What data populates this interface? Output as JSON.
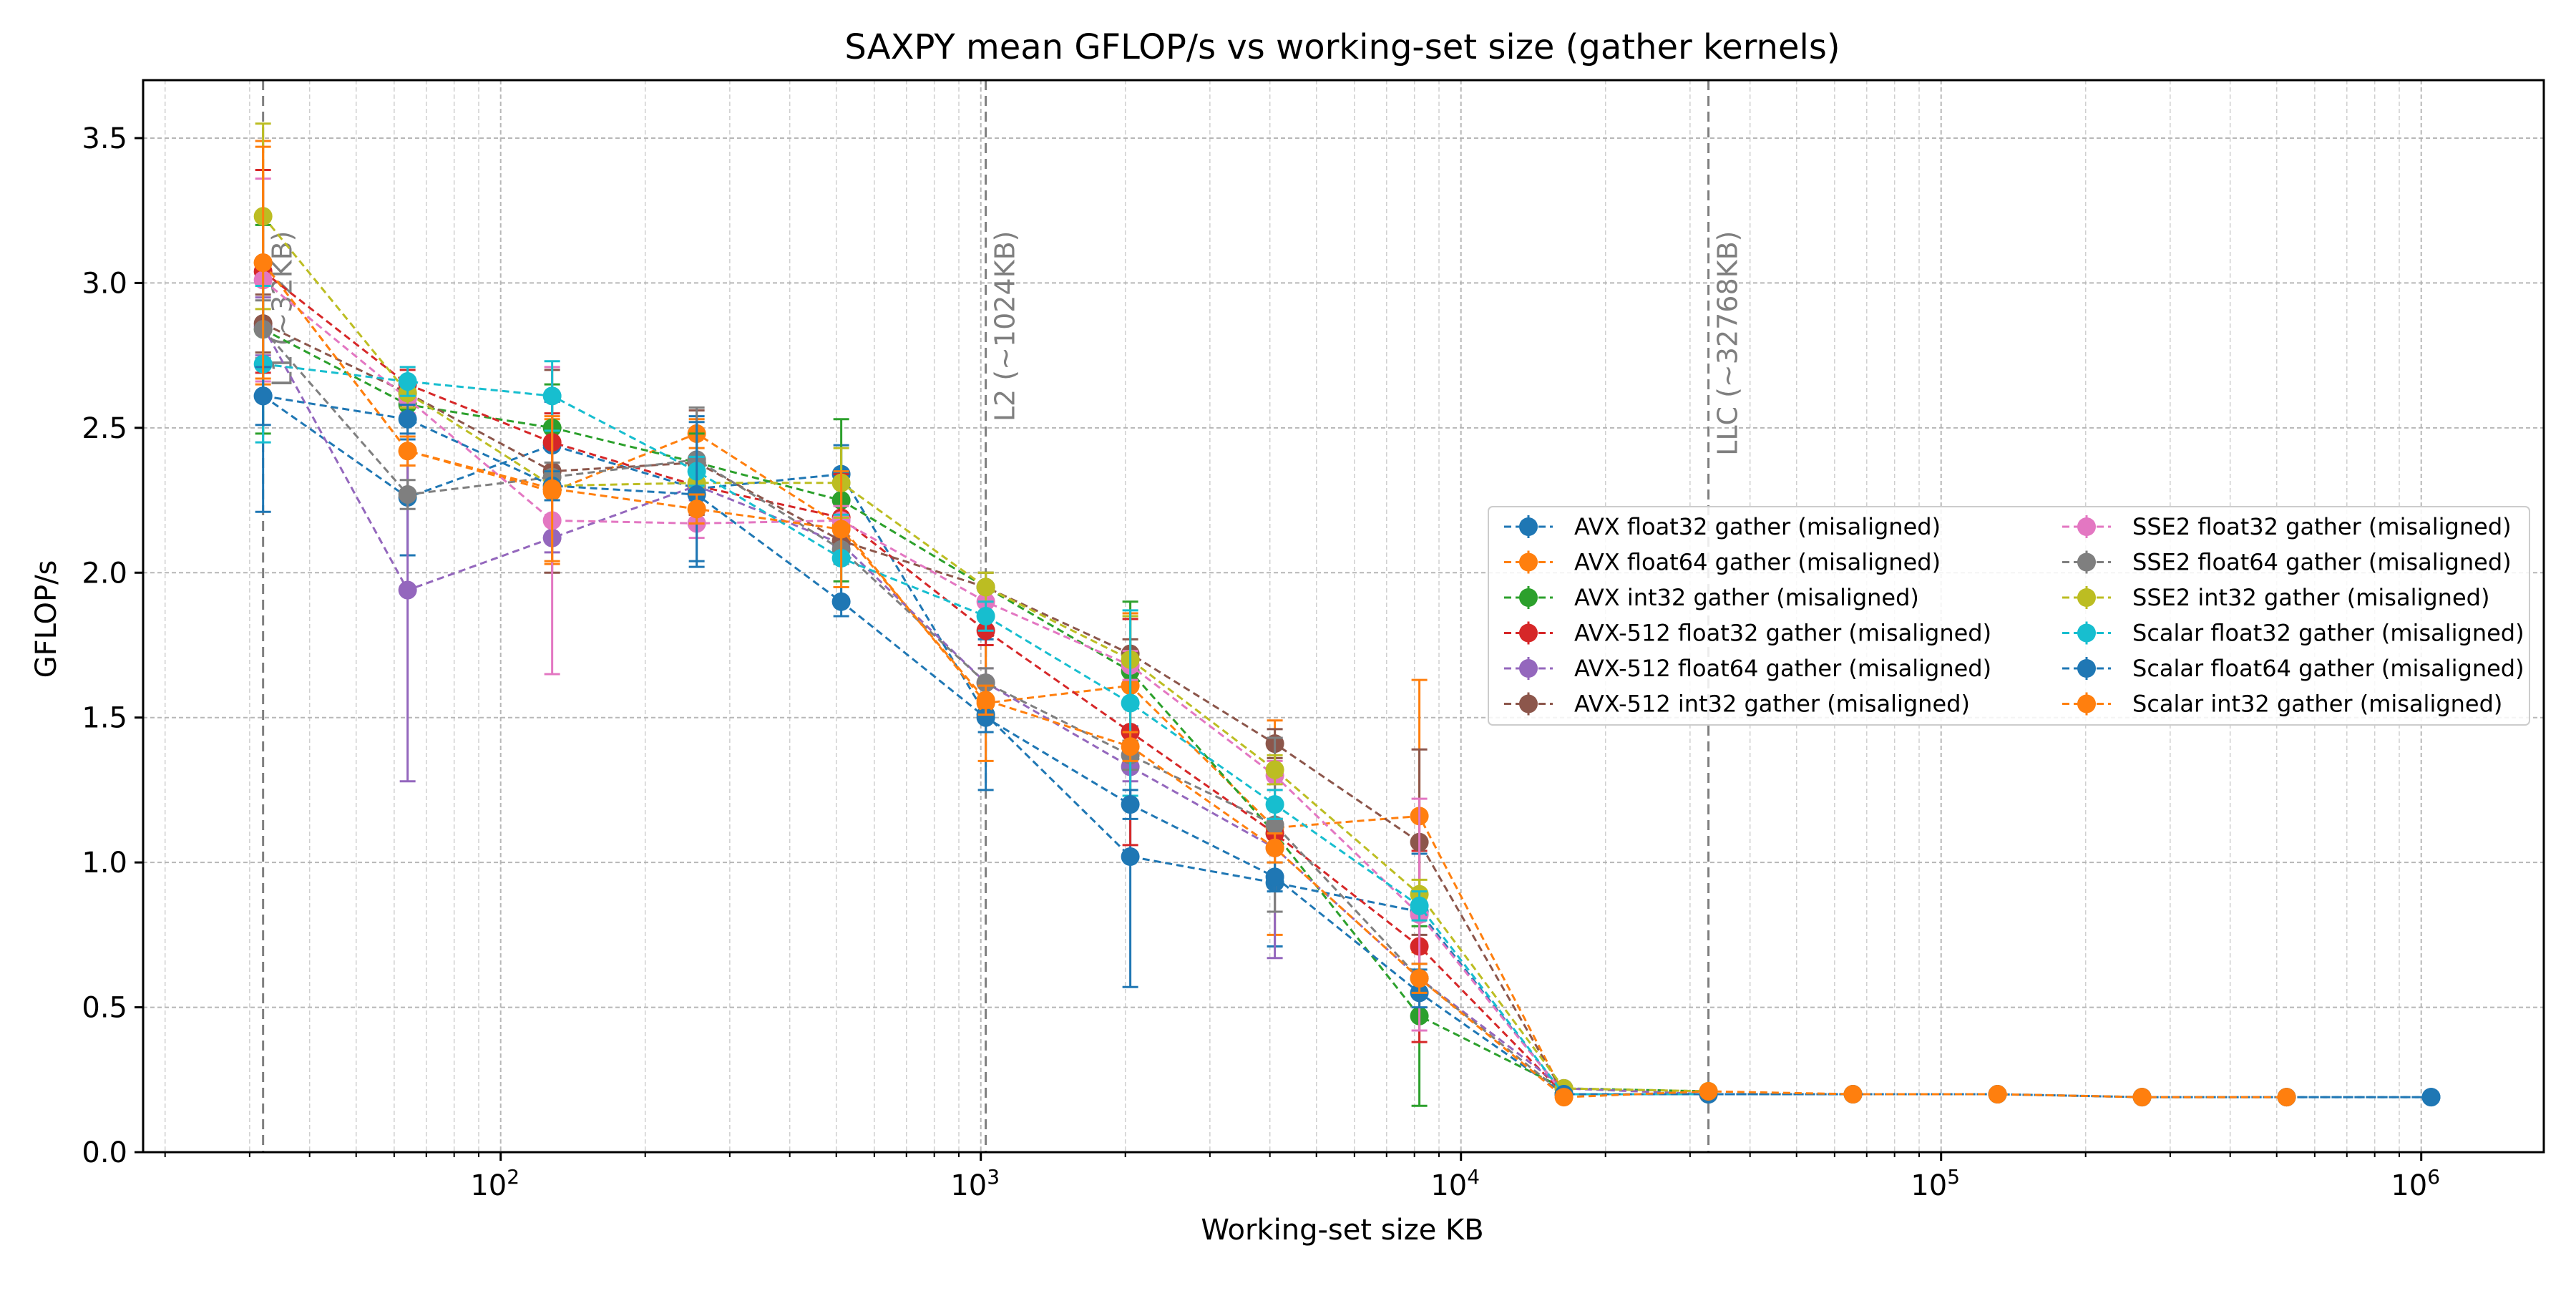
{
  "chart_data": {
    "type": "line",
    "title": "SAXPY mean GFLOP/s vs working-set size (gather kernels)",
    "xlabel": "Working-set size KB",
    "ylabel": "GFLOP/s",
    "xscale": "log",
    "xlim": [
      18,
      1800000
    ],
    "ylim": [
      0,
      3.7
    ],
    "yticks": [
      0.0,
      0.5,
      1.0,
      1.5,
      2.0,
      2.5,
      3.0,
      3.5
    ],
    "ytick_labels": [
      "0.0",
      "0.5",
      "1.0",
      "1.5",
      "2.0",
      "2.5",
      "3.0",
      "3.5"
    ],
    "xticks": [
      100,
      1000,
      10000,
      100000,
      1000000
    ],
    "xtick_base": "10",
    "xtick_exponents": [
      "2",
      "3",
      "4",
      "5",
      "6"
    ],
    "grid": true,
    "legend_position": "center-right",
    "legend_columns": 2,
    "vlines": [
      {
        "x": 32,
        "label": "L1 (~32KB)"
      },
      {
        "x": 1024,
        "label": "L2 (~1024KB)"
      },
      {
        "x": 32768,
        "label": "LLC (~32768KB)"
      }
    ],
    "series": [
      {
        "name": "AVX float32 gather (misaligned)",
        "color": "#1f77b4",
        "x": [
          32,
          64,
          128,
          256,
          512,
          1024,
          2048,
          4096,
          8192,
          16384,
          32768,
          65536,
          131072,
          262144,
          524288,
          1048576
        ],
        "y": [
          2.61,
          2.26,
          2.44,
          2.29,
          2.34,
          1.51,
          1.02,
          0.93,
          0.83,
          0.2,
          0.2,
          0.2,
          0.2,
          0.19,
          0.19,
          0.19
        ],
        "err": [
          0.4,
          0.2,
          0.15,
          0.25,
          0.1,
          0.26,
          0.45,
          0.22,
          0.2,
          0.01,
          0.01,
          0.01,
          0.01,
          0.01,
          0.01,
          0.01
        ]
      },
      {
        "name": "AVX float64 gather (misaligned)",
        "color": "#ff7f0e",
        "x": [
          32,
          64,
          128,
          256,
          512,
          1024,
          2048,
          4096,
          8192,
          16384,
          32768
        ],
        "y": [
          3.07,
          2.42,
          2.28,
          2.48,
          2.16,
          1.55,
          1.61,
          1.12,
          1.16,
          0.2,
          0.2
        ],
        "err": [
          0.42,
          0.15,
          0.25,
          0.05,
          0.1,
          0.2,
          0.25,
          0.37,
          0.47,
          0.01,
          0.01
        ]
      },
      {
        "name": "AVX int32 gather (misaligned)",
        "color": "#2ca02c",
        "x": [
          32,
          64,
          128,
          256,
          512,
          1024,
          2048,
          4096,
          8192,
          16384,
          32768
        ],
        "y": [
          2.84,
          2.58,
          2.5,
          2.38,
          2.25,
          1.95,
          1.66,
          1.1,
          0.47,
          0.22,
          0.21
        ],
        "err": [
          0.36,
          0.05,
          0.15,
          0.1,
          0.28,
          0.05,
          0.24,
          0.05,
          0.31,
          0.01,
          0.01
        ]
      },
      {
        "name": "AVX-512 float32 gather (misaligned)",
        "color": "#d62728",
        "x": [
          32,
          64,
          128,
          256,
          512,
          1024,
          2048,
          4096,
          8192,
          16384,
          32768
        ],
        "y": [
          3.04,
          2.65,
          2.45,
          2.3,
          2.19,
          1.8,
          1.45,
          1.1,
          0.71,
          0.2,
          0.2
        ],
        "err": [
          0.35,
          0.05,
          0.1,
          0.1,
          0.15,
          0.05,
          0.39,
          0.05,
          0.33,
          0.01,
          0.01
        ]
      },
      {
        "name": "AVX-512 float64 gather (misaligned)",
        "color": "#9467bd",
        "x": [
          32,
          64,
          128,
          256,
          512,
          1024,
          2048,
          4096,
          8192,
          16384,
          32768
        ],
        "y": [
          2.85,
          1.94,
          2.12,
          2.3,
          2.1,
          1.62,
          1.33,
          1.05,
          0.6,
          0.22,
          0.2
        ],
        "err": [
          0.1,
          0.66,
          0.05,
          0.05,
          0.05,
          0.05,
          0.05,
          0.38,
          0.05,
          0.01,
          0.01
        ]
      },
      {
        "name": "AVX-512 int32 gather (misaligned)",
        "color": "#8c564b",
        "x": [
          32,
          64,
          128,
          256,
          512,
          1024,
          2048,
          4096,
          8192,
          16384,
          32768
        ],
        "y": [
          2.86,
          2.62,
          2.35,
          2.38,
          2.11,
          1.95,
          1.72,
          1.41,
          1.07,
          0.2,
          0.2
        ],
        "err": [
          0.1,
          0.05,
          0.35,
          0.18,
          0.05,
          0.05,
          0.05,
          0.05,
          0.32,
          0.01,
          0.01
        ]
      },
      {
        "name": "SSE2 float32 gather (misaligned)",
        "color": "#e377c2",
        "x": [
          32,
          64,
          128,
          256,
          512,
          1024,
          2048,
          4096,
          8192,
          16384,
          32768
        ],
        "y": [
          3.01,
          2.6,
          2.18,
          2.17,
          2.18,
          1.9,
          1.68,
          1.3,
          0.82,
          0.2,
          0.2
        ],
        "err": [
          0.35,
          0.05,
          0.53,
          0.05,
          0.05,
          0.05,
          0.05,
          0.05,
          0.4,
          0.01,
          0.01
        ]
      },
      {
        "name": "SSE2 float64 gather (misaligned)",
        "color": "#7f7f7f",
        "x": [
          32,
          64,
          128,
          256,
          512,
          1024,
          2048,
          4096,
          8192,
          16384,
          32768
        ],
        "y": [
          2.84,
          2.27,
          2.33,
          2.39,
          2.08,
          1.62,
          1.37,
          1.13,
          0.6,
          0.2,
          0.2
        ],
        "err": [
          0.1,
          0.05,
          0.05,
          0.18,
          0.05,
          0.05,
          0.05,
          0.3,
          0.05,
          0.01,
          0.01
        ]
      },
      {
        "name": "SSE2 int32 gather (misaligned)",
        "color": "#bcbd22",
        "x": [
          32,
          64,
          128,
          256,
          512,
          1024,
          2048,
          4096,
          8192,
          16384,
          32768
        ],
        "y": [
          3.23,
          2.62,
          2.3,
          2.31,
          2.31,
          1.95,
          1.7,
          1.32,
          0.89,
          0.22,
          0.21
        ],
        "err": [
          0.32,
          0.05,
          0.05,
          0.05,
          0.12,
          0.05,
          0.15,
          0.05,
          0.05,
          0.01,
          0.01
        ]
      },
      {
        "name": "Scalar float32 gather (misaligned)",
        "color": "#17becf",
        "x": [
          32,
          64,
          128,
          256,
          512,
          1024,
          2048,
          4096,
          8192,
          16384,
          32768
        ],
        "y": [
          2.72,
          2.66,
          2.61,
          2.35,
          2.05,
          1.85,
          1.55,
          1.2,
          0.85,
          0.2,
          0.2
        ],
        "err": [
          0.27,
          0.05,
          0.12,
          0.05,
          0.15,
          0.05,
          0.32,
          0.05,
          0.05,
          0.01,
          0.01
        ]
      },
      {
        "name": "Scalar float64 gather (misaligned)",
        "color": "#1f77b4",
        "x": [
          32,
          64,
          128,
          256,
          512,
          1024,
          2048,
          4096,
          8192,
          16384,
          32768,
          65536,
          131072,
          262144,
          524288,
          1048576
        ],
        "y": [
          2.61,
          2.53,
          2.3,
          2.27,
          1.9,
          1.5,
          1.2,
          0.95,
          0.55,
          0.2,
          0.2,
          0.2,
          0.2,
          0.19,
          0.19,
          0.19
        ],
        "err": [
          0.1,
          0.05,
          0.05,
          0.25,
          0.05,
          0.05,
          0.05,
          0.05,
          0.05,
          0.01,
          0.01,
          0.01,
          0.01,
          0.01,
          0.01,
          0.01
        ]
      },
      {
        "name": "Scalar int32 gather (misaligned)",
        "color": "#ff7f0e",
        "x": [
          32,
          64,
          128,
          256,
          512,
          1024,
          2048,
          4096,
          8192,
          16384,
          32768,
          65536,
          131072,
          262144,
          524288
        ],
        "y": [
          3.07,
          2.42,
          2.29,
          2.22,
          2.15,
          1.56,
          1.4,
          1.05,
          0.6,
          0.19,
          0.21,
          0.2,
          0.2,
          0.19,
          0.19
        ],
        "err": [
          0.4,
          0.05,
          0.25,
          0.05,
          0.2,
          0.05,
          0.05,
          0.05,
          0.05,
          0.01,
          0.01,
          0.01,
          0.01,
          0.01,
          0.01
        ]
      }
    ]
  }
}
